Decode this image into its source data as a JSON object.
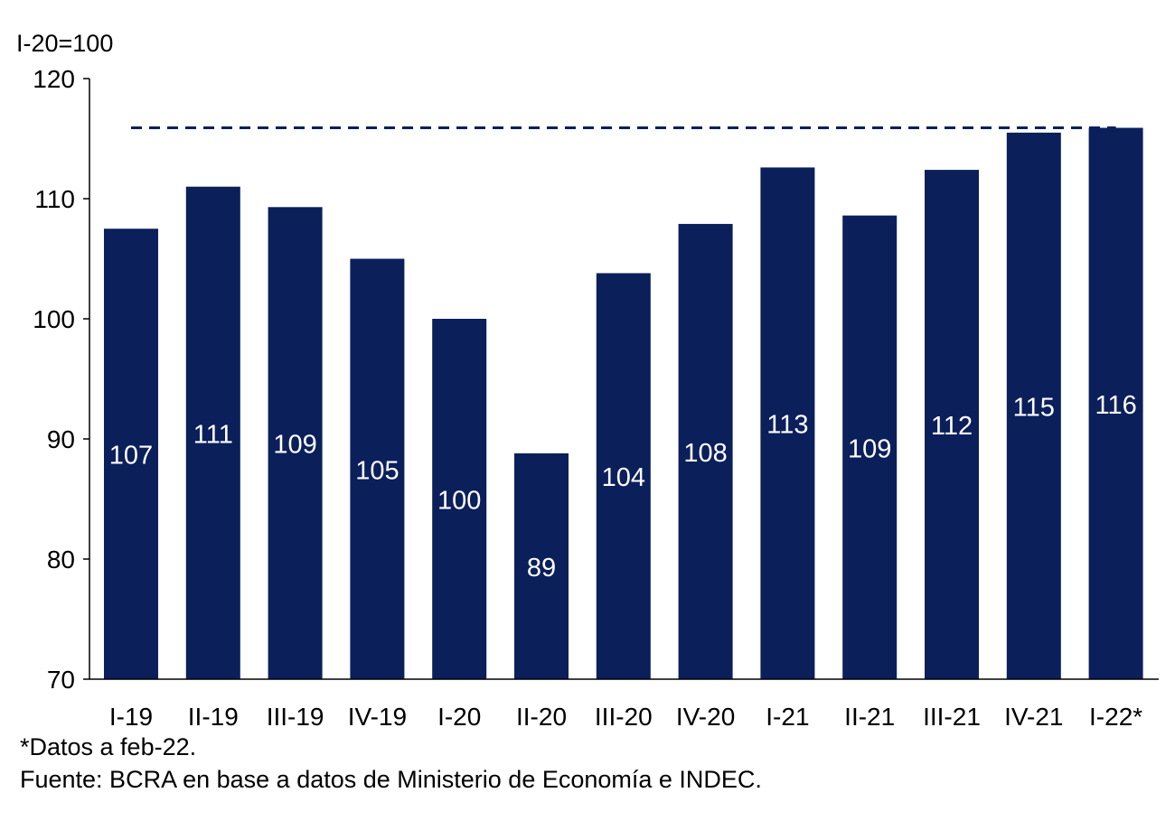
{
  "chart_data": {
    "type": "bar",
    "unit_label": "I-20=100",
    "categories": [
      "I-19",
      "II-19",
      "III-19",
      "IV-19",
      "I-20",
      "II-20",
      "III-20",
      "IV-20",
      "I-21",
      "II-21",
      "III-21",
      "IV-21",
      "I-22*"
    ],
    "values": [
      107.5,
      111.0,
      109.3,
      105.0,
      100.0,
      88.8,
      103.8,
      107.9,
      112.6,
      108.6,
      112.4,
      115.5,
      115.9
    ],
    "data_labels": [
      "107",
      "111",
      "109",
      "105",
      "100",
      "89",
      "104",
      "108",
      "113",
      "109",
      "112",
      "115",
      "116"
    ],
    "reference_line": {
      "value": 115.9,
      "style": "dashed",
      "from": "I-19",
      "to": "I-22*"
    },
    "ylim": [
      70,
      120
    ],
    "yticks": [
      "70",
      "80",
      "90",
      "100",
      "110",
      "120"
    ],
    "grid": false,
    "colors": {
      "bar": "#0b1f5b",
      "label": "#ffffff",
      "reference_line": "#0b1f5b"
    }
  },
  "footnotes": {
    "note": "*Datos a feb-22.",
    "source": "Fuente: BCRA en base a datos de Ministerio de Economía e INDEC."
  }
}
